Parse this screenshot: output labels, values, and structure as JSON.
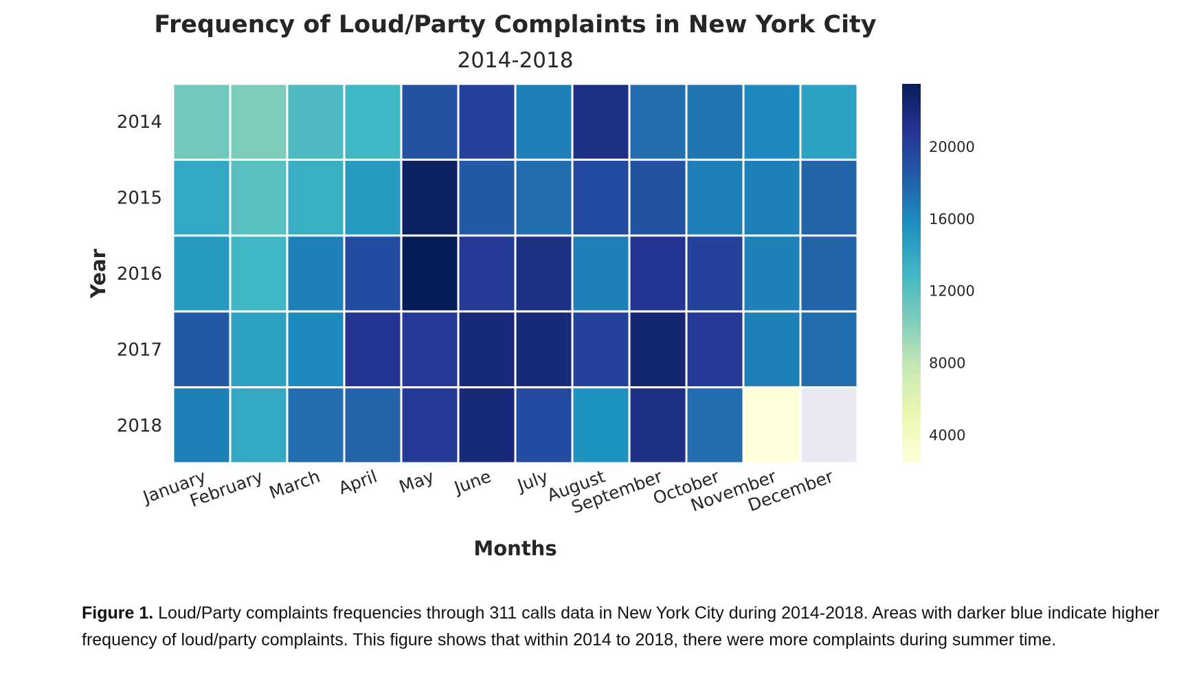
{
  "chart_data": {
    "type": "heatmap",
    "title": "Frequency of Loud/Party Complaints in New York City",
    "subtitle": "2014-2018",
    "xlabel": "Months",
    "ylabel": "Year",
    "x": [
      "January",
      "February",
      "March",
      "April",
      "May",
      "June",
      "July",
      "August",
      "September",
      "October",
      "November",
      "December"
    ],
    "y": [
      "2014",
      "2015",
      "2016",
      "2017",
      "2018"
    ],
    "values": [
      [
        11000,
        10500,
        12500,
        13000,
        19000,
        20000,
        16500,
        21500,
        17500,
        17000,
        16000,
        14500
      ],
      [
        14000,
        12000,
        13500,
        15000,
        23000,
        18500,
        17500,
        19500,
        19000,
        16500,
        16500,
        18000
      ],
      [
        15000,
        13000,
        16500,
        19500,
        23500,
        20500,
        21500,
        16500,
        21000,
        20000,
        16500,
        18000
      ],
      [
        18500,
        14500,
        16000,
        21000,
        20500,
        22000,
        22000,
        20000,
        22500,
        20500,
        16500,
        17500
      ],
      [
        16500,
        14000,
        17500,
        18000,
        20500,
        22000,
        19500,
        15500,
        21500,
        17500,
        2500,
        null
      ]
    ],
    "colorbar": {
      "ticks": [
        4000,
        8000,
        12000,
        16000,
        20000
      ],
      "range": [
        2500,
        23500
      ],
      "colormap": "YlGnBu"
    },
    "missing_color": "#eaeaf2",
    "grid": false
  },
  "caption": {
    "label": "Figure 1.",
    "text": " Loud/Party complaints frequencies through 311 calls data in New York City during 2014-2018. Areas with darker blue indicate higher frequency of loud/party complaints. This figure shows that within 2014 to 2018, there were more complaints during summer time."
  }
}
